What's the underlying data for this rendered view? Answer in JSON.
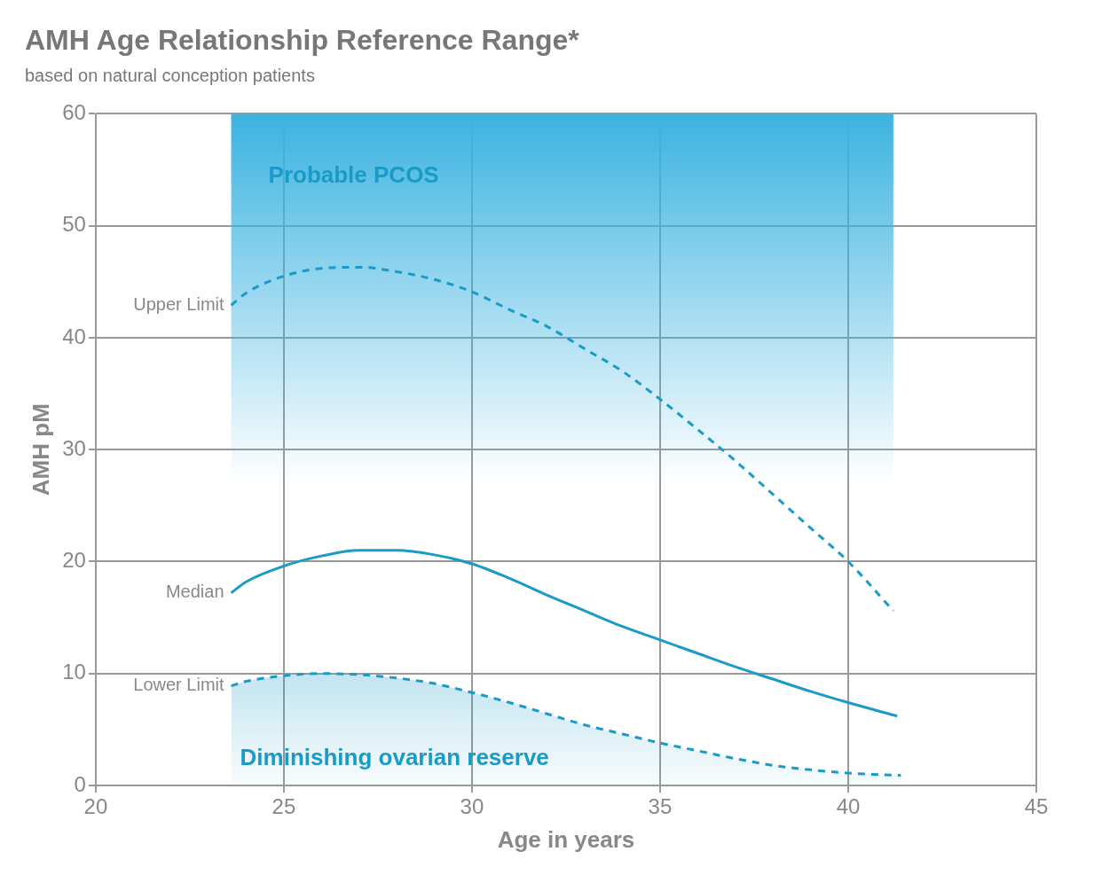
{
  "chart_data": {
    "type": "line",
    "title": "AMH Age Relationship Reference Range*",
    "subtitle": "based on natural conception patients",
    "xlabel": "Age in years",
    "ylabel": "AMH pM",
    "xlim": [
      20,
      45
    ],
    "xticks": [
      20,
      25,
      30,
      35,
      40,
      45
    ],
    "ylim": [
      0,
      60
    ],
    "yticks": [
      0,
      10,
      20,
      30,
      40,
      50,
      60
    ],
    "grid": true,
    "legend": false,
    "series": [
      {
        "name": "Upper Limit",
        "color": "#1a9bc7",
        "line_style": "dashed",
        "x": [
          23.6,
          24,
          25,
          26,
          27,
          28,
          29,
          30,
          31,
          32,
          33,
          34,
          35,
          36,
          37,
          38,
          39,
          40,
          41.2
        ],
        "values": [
          42.9,
          44,
          45.5,
          46.2,
          46.3,
          45.9,
          45.2,
          44.1,
          42.5,
          41,
          39,
          37,
          34.5,
          31.8,
          29,
          26,
          23,
          20,
          15.6
        ]
      },
      {
        "name": "Median",
        "color": "#1a9bc7",
        "line_style": "solid",
        "x": [
          23.6,
          24,
          25,
          26,
          27,
          28,
          29,
          30,
          31,
          32,
          33,
          34,
          35,
          36,
          37,
          38,
          39,
          40,
          41.3
        ],
        "values": [
          17.2,
          18.2,
          19.6,
          20.5,
          21,
          21,
          20.6,
          19.8,
          18.5,
          17,
          15.6,
          14.2,
          13,
          11.8,
          10.6,
          9.5,
          8.4,
          7.4,
          6.2
        ]
      },
      {
        "name": "Lower Limit",
        "type": "area",
        "color": "#1a9bc7",
        "line_style": "dashed",
        "x": [
          23.6,
          24,
          25,
          26,
          27,
          28,
          29,
          30,
          31,
          32,
          33,
          34,
          35,
          36,
          37,
          38,
          39,
          40,
          41.4
        ],
        "values": [
          8.9,
          9.3,
          9.8,
          10,
          9.9,
          9.6,
          9.1,
          8.3,
          7.4,
          6.4,
          5.4,
          4.6,
          3.8,
          3.1,
          2.4,
          1.8,
          1.4,
          1.1,
          0.9
        ]
      }
    ],
    "bands": [
      {
        "axis": "x",
        "from": 23.6,
        "to": 41.2,
        "label": "Probable PCOS",
        "color": "#3bb3e0"
      }
    ],
    "annotations": [
      "Diminishing ovarian reserve"
    ]
  }
}
